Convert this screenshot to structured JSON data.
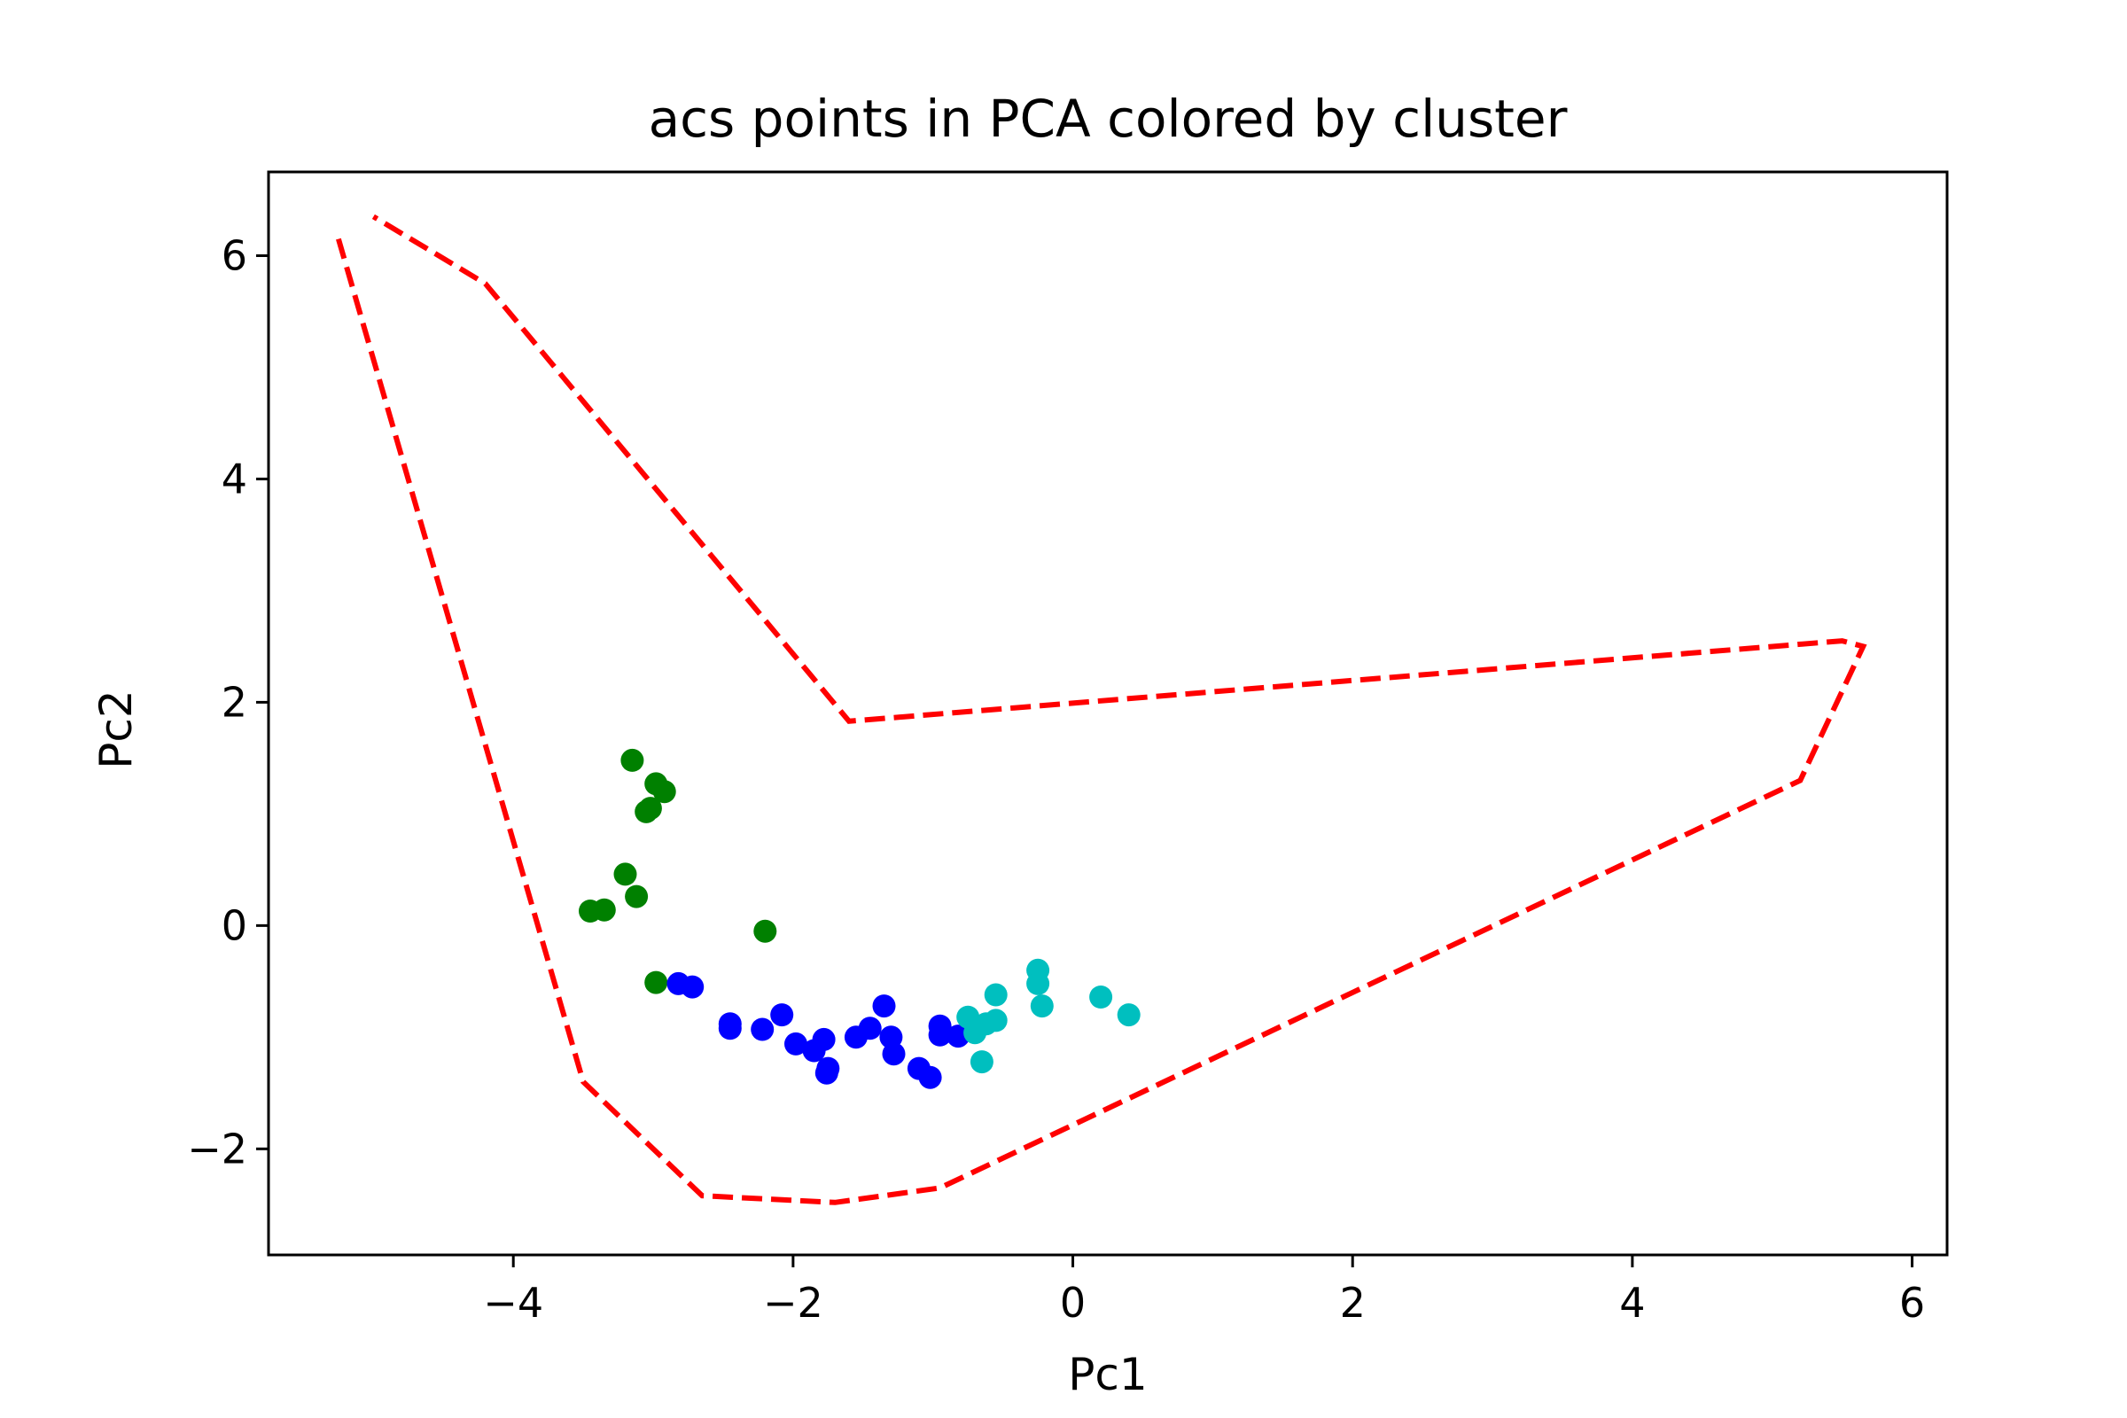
{
  "chart_data": {
    "type": "scatter",
    "title": "acs points in PCA colored by cluster",
    "xlabel": "Pc1",
    "ylabel": "Pc2",
    "xlim": [
      -5.75,
      6.25
    ],
    "ylim": [
      -2.95,
      6.75
    ],
    "x_ticks": [
      {
        "value": -4,
        "label": "−4"
      },
      {
        "value": -2,
        "label": "−2"
      },
      {
        "value": 0,
        "label": "0"
      },
      {
        "value": 2,
        "label": "2"
      },
      {
        "value": 4,
        "label": "4"
      },
      {
        "value": 6,
        "label": "6"
      }
    ],
    "y_ticks": [
      {
        "value": -2,
        "label": "−2"
      },
      {
        "value": 0,
        "label": "0"
      },
      {
        "value": 2,
        "label": "2"
      },
      {
        "value": 4,
        "label": "4"
      },
      {
        "value": 6,
        "label": "6"
      }
    ],
    "grid": false,
    "series": [
      {
        "color": "#008000",
        "points": [
          [
            -3.15,
            1.48
          ],
          [
            -2.98,
            1.27
          ],
          [
            -2.92,
            1.2
          ],
          [
            -3.05,
            1.02
          ],
          [
            -3.02,
            1.05
          ],
          [
            -3.2,
            0.46
          ],
          [
            -3.12,
            0.26
          ],
          [
            -3.35,
            0.14
          ],
          [
            -3.45,
            0.13
          ],
          [
            -2.2,
            -0.05
          ],
          [
            -2.98,
            -0.51
          ]
        ]
      },
      {
        "color": "#0000ff",
        "points": [
          [
            -2.82,
            -0.52
          ],
          [
            -2.72,
            -0.55
          ],
          [
            -2.45,
            -0.88
          ],
          [
            -2.45,
            -0.92
          ],
          [
            -2.22,
            -0.93
          ],
          [
            -2.08,
            -0.8
          ],
          [
            -1.98,
            -1.06
          ],
          [
            -1.85,
            -1.12
          ],
          [
            -1.78,
            -1.02
          ],
          [
            -1.75,
            -1.28
          ],
          [
            -1.76,
            -1.32
          ],
          [
            -1.55,
            -1.0
          ],
          [
            -1.45,
            -0.92
          ],
          [
            -1.35,
            -0.72
          ],
          [
            -1.3,
            -1.0
          ],
          [
            -1.28,
            -1.15
          ],
          [
            -1.1,
            -1.28
          ],
          [
            -1.02,
            -1.36
          ],
          [
            -0.95,
            -0.9
          ],
          [
            -0.95,
            -0.98
          ],
          [
            -0.82,
            -0.99
          ]
        ]
      },
      {
        "color": "#00bfbf",
        "points": [
          [
            -0.75,
            -0.82
          ],
          [
            -0.7,
            -0.96
          ],
          [
            -0.62,
            -0.88
          ],
          [
            -0.55,
            -0.85
          ],
          [
            -0.55,
            -0.62
          ],
          [
            -0.65,
            -1.22
          ],
          [
            -0.25,
            -0.4
          ],
          [
            -0.25,
            -0.52
          ],
          [
            -0.22,
            -0.72
          ],
          [
            0.2,
            -0.64
          ],
          [
            0.4,
            -0.8
          ]
        ]
      }
    ],
    "boundary": {
      "color": "#ff0000",
      "style": "dashed",
      "points": [
        [
          -5.25,
          6.15
        ],
        [
          -3.5,
          -1.4
        ],
        [
          -2.65,
          -2.42
        ],
        [
          -1.7,
          -2.48
        ],
        [
          -0.95,
          -2.35
        ],
        [
          5.2,
          1.3
        ],
        [
          5.65,
          2.5
        ],
        [
          5.5,
          2.55
        ],
        [
          -1.6,
          1.83
        ],
        [
          -4.2,
          5.75
        ],
        [
          -5.0,
          6.35
        ]
      ]
    }
  }
}
